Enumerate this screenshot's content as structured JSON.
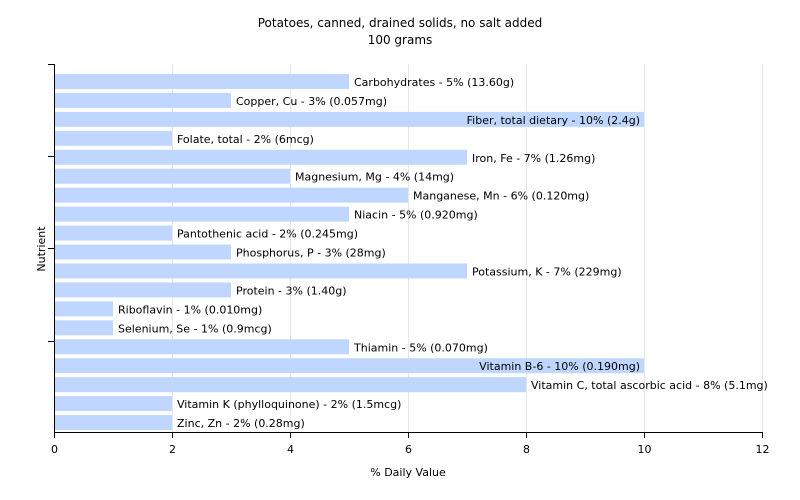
{
  "chart_data": {
    "type": "bar",
    "orientation": "horizontal",
    "title": "Potatoes, canned, drained solids, no salt added",
    "subtitle": "100 grams",
    "xlabel": "% Daily Value",
    "ylabel": "Nutrient",
    "xlim": [
      0,
      12
    ],
    "xticks": [
      0,
      2,
      4,
      6,
      8,
      10,
      12
    ],
    "grid": true,
    "bar_color": "#bfd7ff",
    "categories": [
      "Carbohydrates",
      "Copper, Cu",
      "Fiber, total dietary",
      "Folate, total",
      "Iron, Fe",
      "Magnesium, Mg",
      "Manganese, Mn",
      "Niacin",
      "Pantothenic acid",
      "Phosphorus, P",
      "Potassium, K",
      "Protein",
      "Riboflavin",
      "Selenium, Se",
      "Thiamin",
      "Vitamin B-6",
      "Vitamin C, total ascorbic acid",
      "Vitamin K (phylloquinone)",
      "Zinc, Zn"
    ],
    "values": [
      5,
      3,
      10,
      2,
      7,
      4,
      6,
      5,
      2,
      3,
      7,
      3,
      1,
      1,
      5,
      10,
      8,
      2,
      2
    ],
    "data_labels": [
      "Carbohydrates - 5% (13.60g)",
      "Copper, Cu - 3% (0.057mg)",
      "Fiber, total dietary - 10% (2.4g)",
      "Folate, total - 2% (6mcg)",
      "Iron, Fe - 7% (1.26mg)",
      "Magnesium, Mg - 4% (14mg)",
      "Manganese, Mn - 6% (0.120mg)",
      "Niacin - 5% (0.920mg)",
      "Pantothenic acid - 2% (0.245mg)",
      "Phosphorus, P - 3% (28mg)",
      "Potassium, K - 7% (229mg)",
      "Protein - 3% (1.40g)",
      "Riboflavin - 1% (0.010mg)",
      "Selenium, Se - 1% (0.9mcg)",
      "Thiamin - 5% (0.070mg)",
      "Vitamin B-6 - 10% (0.190mg)",
      "Vitamin C, total ascorbic acid - 8% (5.1mg)",
      "Vitamin K (phylloquinone) - 2% (1.5mcg)",
      "Zinc, Zn - 2% (0.28mg)"
    ]
  }
}
